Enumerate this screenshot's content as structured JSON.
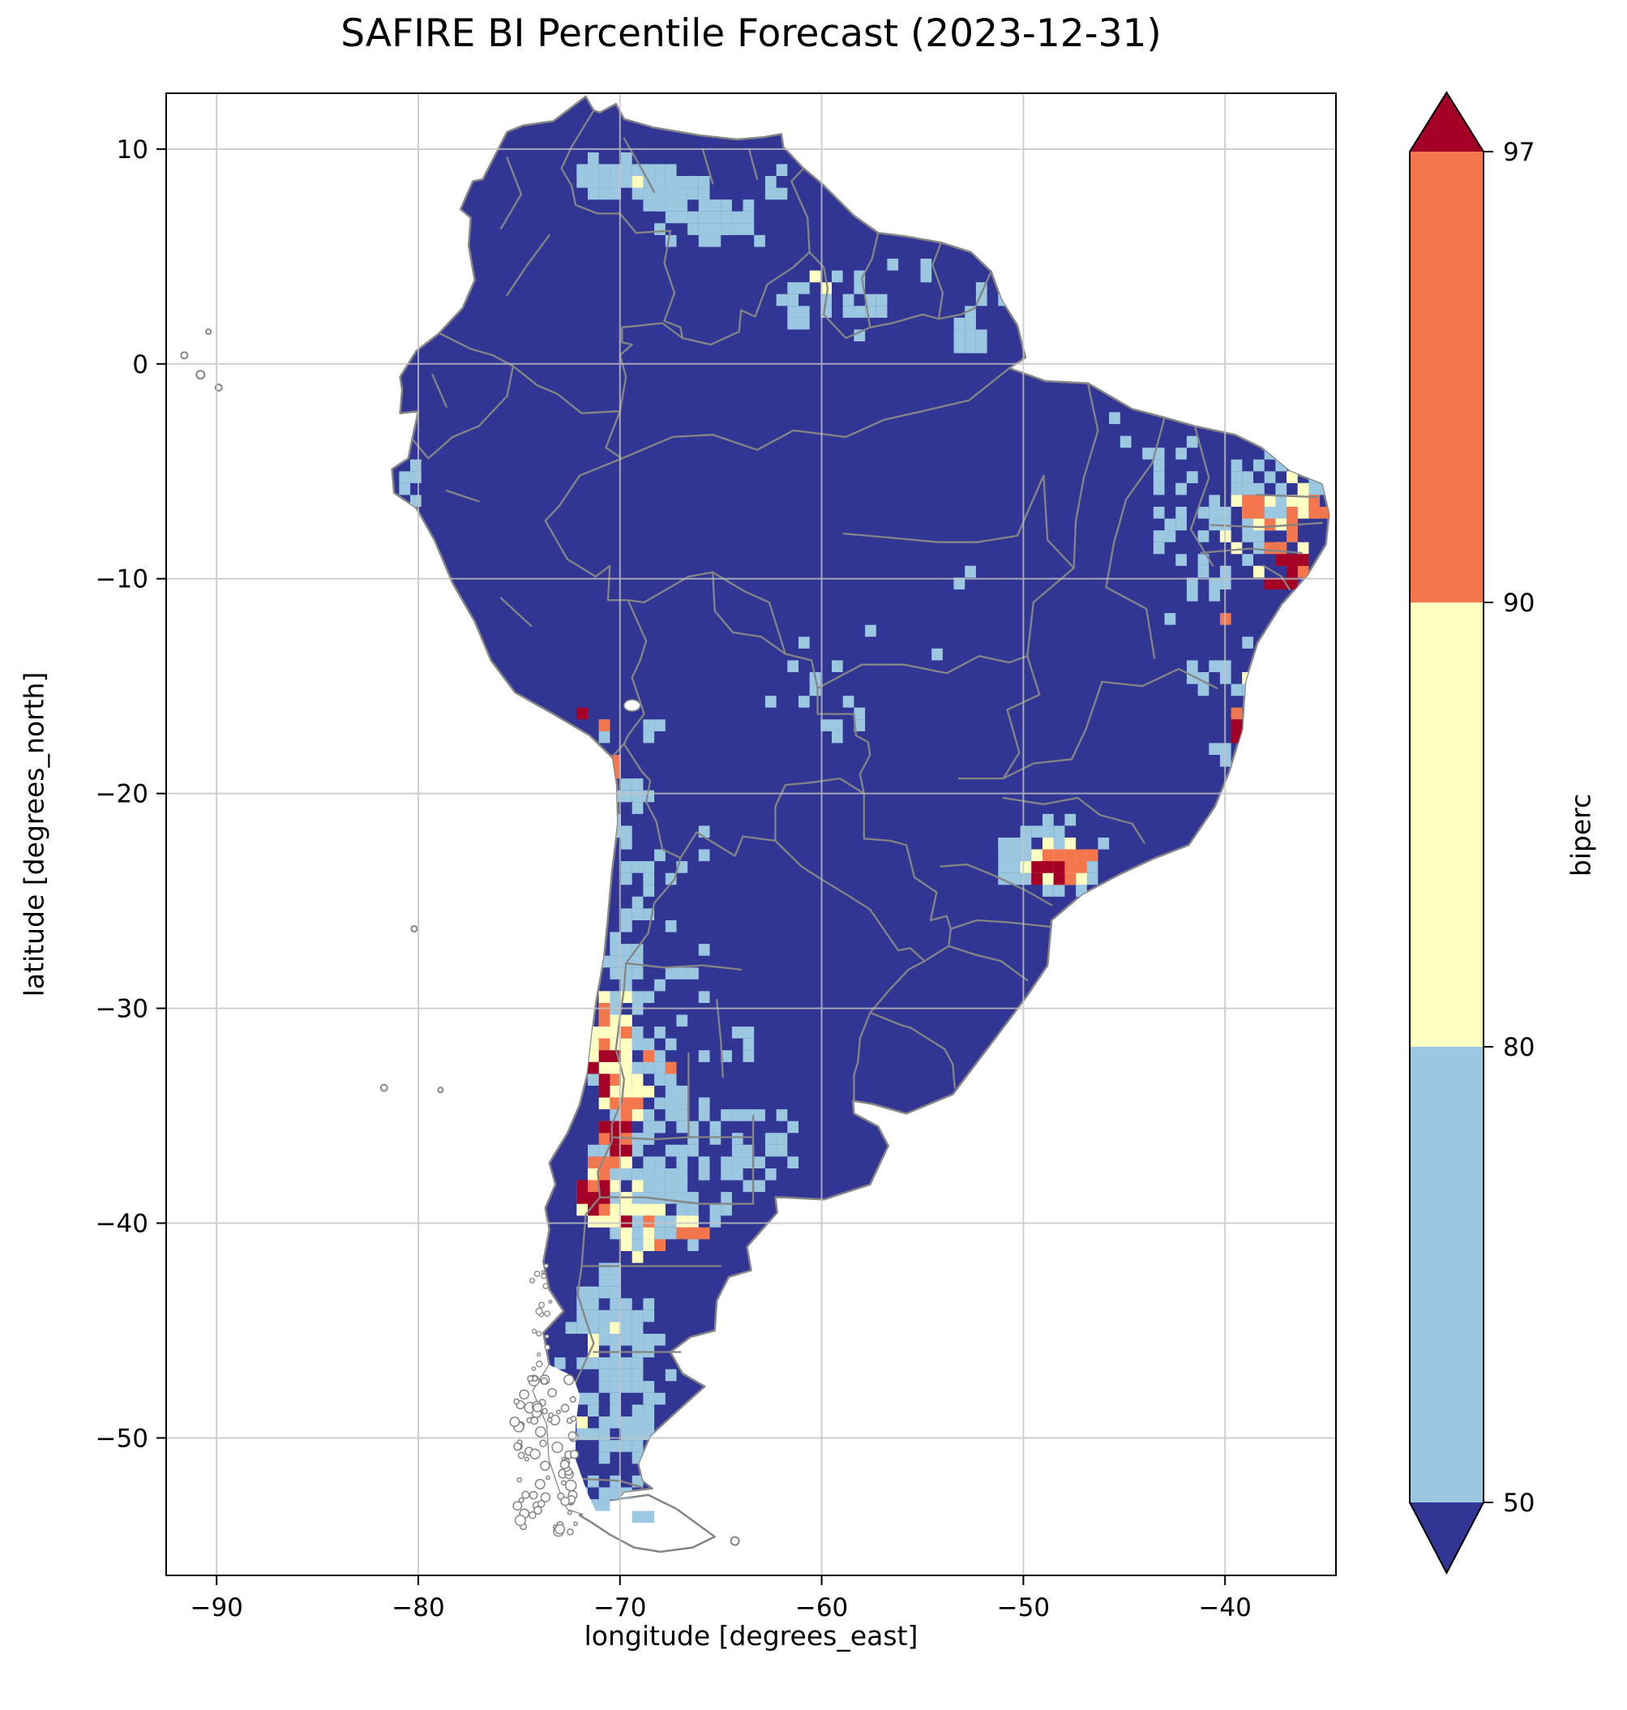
{
  "title": "SAFIRE BI Percentile Forecast (2023-12-31)",
  "axes": {
    "xlabel": "longitude [degrees_east]",
    "ylabel": "latitude [degrees_north]",
    "xticks": [
      -90,
      -80,
      -70,
      -60,
      -50,
      -40
    ],
    "xtick_labels": [
      "−90",
      "−80",
      "−70",
      "−60",
      "−50",
      "−40"
    ],
    "yticks": [
      10,
      0,
      -10,
      -20,
      -30,
      -40,
      -50
    ],
    "ytick_labels": [
      "10",
      "0",
      "−10",
      "−20",
      "−30",
      "−40",
      "−50"
    ],
    "xlim": [
      -92.5,
      -34.5
    ],
    "ylim": [
      -56.4,
      12.6
    ],
    "grid": true
  },
  "colorbar": {
    "label": "biperc",
    "tick_labels": [
      "97",
      "90",
      "80",
      "50"
    ],
    "extend": "both"
  },
  "chart_data": {
    "type": "heatmap",
    "variable": "biperc",
    "units": "percentile",
    "date": "2023-12-31",
    "region": "South America",
    "levels": [
      50,
      80,
      90,
      97
    ],
    "level_colors": {
      "under_50": "#313695",
      "50_80": "#9bc8e0",
      "80_90": "#ffffc2",
      "90_97": "#f3764d",
      "over_97": "#a50026"
    },
    "border_color": "#858585",
    "grid_color": "#c3c3c3",
    "background_value": "< 50 percentile (dark blue) over most of the continent",
    "hotspots": [
      {
        "lon": -69.6,
        "lat": 8.5,
        "rx": 2.7,
        "ry": 1.6,
        "level": "50_80",
        "density": 0.85
      },
      {
        "lon": -66.2,
        "lat": 7.0,
        "rx": 2.7,
        "ry": 1.6,
        "level": "50_80",
        "density": 0.7
      },
      {
        "lon": -63.8,
        "lat": 6.1,
        "rx": 1.4,
        "ry": 1.1,
        "level": "50_80",
        "density": 0.45
      },
      {
        "lon": -62.3,
        "lat": 8.3,
        "rx": 1.1,
        "ry": 0.9,
        "level": "50_80",
        "density": 0.4
      },
      {
        "lon": -69.2,
        "lat": 8.7,
        "rx": 0.6,
        "ry": 0.45,
        "level": "80_90",
        "density": 0.5
      },
      {
        "lon": -61.0,
        "lat": 2.9,
        "rx": 1.5,
        "ry": 1.6,
        "level": "50_80",
        "density": 0.5
      },
      {
        "lon": -58.2,
        "lat": 2.9,
        "rx": 1.7,
        "ry": 1.7,
        "level": "50_80",
        "density": 0.4
      },
      {
        "lon": -55.8,
        "lat": 4.3,
        "rx": 1.1,
        "ry": 0.9,
        "level": "50_80",
        "density": 0.35
      },
      {
        "lon": -60.1,
        "lat": 3.8,
        "rx": 0.5,
        "ry": 0.5,
        "level": "80_90",
        "density": 0.55
      },
      {
        "lon": -52.1,
        "lat": 2.0,
        "rx": 1.4,
        "ry": 2.0,
        "level": "50_80",
        "density": 0.5
      },
      {
        "lon": -60.6,
        "lat": -3.2,
        "rx": 0.8,
        "ry": 0.6,
        "level": "50_80",
        "density": 0.4
      },
      {
        "lon": -64.5,
        "lat": -5.8,
        "rx": 0.6,
        "ry": 0.5,
        "level": "50_80",
        "density": 0.3
      },
      {
        "lon": -80.2,
        "lat": -5.6,
        "rx": 0.7,
        "ry": 0.9,
        "level": "50_80",
        "density": 0.45
      },
      {
        "lon": -40.6,
        "lat": -7.6,
        "rx": 3.6,
        "ry": 3.1,
        "level": "50_80",
        "density": 0.33
      },
      {
        "lon": -37.6,
        "lat": -6.1,
        "rx": 2.6,
        "ry": 2.1,
        "level": "50_80",
        "density": 0.5
      },
      {
        "lon": -42.6,
        "lat": -4.6,
        "rx": 2.0,
        "ry": 1.6,
        "level": "50_80",
        "density": 0.3
      },
      {
        "lon": -44.9,
        "lat": -3.1,
        "rx": 1.0,
        "ry": 0.8,
        "level": "50_80",
        "density": 0.25
      },
      {
        "lon": -41.6,
        "lat": -11.4,
        "rx": 1.6,
        "ry": 1.6,
        "level": "50_80",
        "density": 0.25
      },
      {
        "lon": -41.8,
        "lat": -14.2,
        "rx": 1.3,
        "ry": 1.4,
        "level": "50_80",
        "density": 0.3
      },
      {
        "lon": -38.1,
        "lat": -7.6,
        "rx": 2.3,
        "ry": 2.3,
        "level": "80_90",
        "density": 0.3
      },
      {
        "lon": -36.3,
        "lat": -6.3,
        "rx": 1.1,
        "ry": 1.1,
        "level": "80_90",
        "density": 0.35
      },
      {
        "lon": -38.6,
        "lat": -7.2,
        "rx": 0.9,
        "ry": 0.9,
        "level": "90_97",
        "density": 0.35
      },
      {
        "lon": -36.9,
        "lat": -8.9,
        "rx": 1.5,
        "ry": 1.4,
        "level": "90_97",
        "density": 0.45
      },
      {
        "lon": -35.8,
        "lat": -7.2,
        "rx": 0.9,
        "ry": 1.4,
        "level": "90_97",
        "density": 0.3
      },
      {
        "lon": -36.5,
        "lat": -9.3,
        "rx": 0.9,
        "ry": 0.7,
        "level": "over_97",
        "density": 0.75
      },
      {
        "lon": -37.3,
        "lat": -10.3,
        "rx": 0.65,
        "ry": 0.6,
        "level": "over_97",
        "density": 0.65
      },
      {
        "lon": -35.7,
        "lat": -8.6,
        "rx": 0.5,
        "ry": 0.5,
        "level": "over_97",
        "density": 0.5
      },
      {
        "lon": -39.4,
        "lat": -14.3,
        "rx": 1.0,
        "ry": 2.2,
        "level": "50_80",
        "density": 0.5
      },
      {
        "lon": -39.3,
        "lat": -15.3,
        "rx": 0.6,
        "ry": 1.2,
        "level": "80_90",
        "density": 0.45
      },
      {
        "lon": -39.8,
        "lat": -11.6,
        "rx": 0.5,
        "ry": 0.7,
        "level": "90_97",
        "density": 0.5
      },
      {
        "lon": -39.6,
        "lat": -16.6,
        "rx": 0.5,
        "ry": 0.7,
        "level": "90_97",
        "density": 0.5
      },
      {
        "lon": -39.3,
        "lat": -17.2,
        "rx": 0.5,
        "ry": 0.9,
        "level": "over_97",
        "density": 0.7
      },
      {
        "lon": -40.1,
        "lat": -18.0,
        "rx": 0.7,
        "ry": 0.7,
        "level": "50_80",
        "density": 0.35
      },
      {
        "lon": -48.6,
        "lat": -23.0,
        "rx": 3.0,
        "ry": 1.9,
        "level": "50_80",
        "density": 0.75
      },
      {
        "lon": -50.9,
        "lat": -22.3,
        "rx": 1.1,
        "ry": 0.9,
        "level": "50_80",
        "density": 0.4
      },
      {
        "lon": -48.4,
        "lat": -23.2,
        "rx": 2.0,
        "ry": 1.2,
        "level": "80_90",
        "density": 0.8
      },
      {
        "lon": -47.9,
        "lat": -23.3,
        "rx": 1.5,
        "ry": 0.85,
        "level": "90_97",
        "density": 0.8
      },
      {
        "lon": -46.2,
        "lat": -22.8,
        "rx": 0.8,
        "ry": 0.5,
        "level": "90_97",
        "density": 0.55
      },
      {
        "lon": -48.7,
        "lat": -23.6,
        "rx": 1.05,
        "ry": 0.55,
        "level": "over_97",
        "density": 0.9
      },
      {
        "lon": -55.4,
        "lat": -12.6,
        "rx": 3.2,
        "ry": 2.2,
        "level": "50_80",
        "density": 0.1
      },
      {
        "lon": -60.2,
        "lat": -13.6,
        "rx": 1.6,
        "ry": 1.6,
        "level": "50_80",
        "density": 0.15
      },
      {
        "lon": -58.6,
        "lat": -16.6,
        "rx": 1.7,
        "ry": 1.1,
        "level": "50_80",
        "density": 0.3
      },
      {
        "lon": -61.3,
        "lat": -15.6,
        "rx": 1.4,
        "ry": 1.1,
        "level": "50_80",
        "density": 0.2
      },
      {
        "lon": -52.8,
        "lat": -10.8,
        "rx": 1.5,
        "ry": 1.5,
        "level": "50_80",
        "density": 0.1
      },
      {
        "lon": -71.4,
        "lat": -16.8,
        "rx": 0.7,
        "ry": 0.55,
        "level": "90_97",
        "density": 0.6
      },
      {
        "lon": -71.7,
        "lat": -16.5,
        "rx": 0.35,
        "ry": 0.3,
        "level": "over_97",
        "density": 0.7
      },
      {
        "lon": -70.4,
        "lat": -17.3,
        "rx": 0.9,
        "ry": 0.6,
        "level": "50_80",
        "density": 0.5
      },
      {
        "lon": -72.4,
        "lat": -15.4,
        "rx": 0.35,
        "ry": 0.3,
        "level": "90_97",
        "density": 0.55
      },
      {
        "lon": -70.2,
        "lat": -18.6,
        "rx": 0.45,
        "ry": 0.6,
        "level": "90_97",
        "density": 0.55
      },
      {
        "lon": -68.3,
        "lat": -16.4,
        "rx": 0.6,
        "ry": 0.45,
        "level": "80_90",
        "density": 0.5
      },
      {
        "lon": -68.7,
        "lat": -16.9,
        "rx": 0.8,
        "ry": 0.5,
        "level": "50_80",
        "density": 0.4
      },
      {
        "lon": -69.5,
        "lat": -20.6,
        "rx": 1.0,
        "ry": 2.4,
        "level": "50_80",
        "density": 0.55
      },
      {
        "lon": -69.0,
        "lat": -24.8,
        "rx": 1.0,
        "ry": 2.4,
        "level": "50_80",
        "density": 0.5
      },
      {
        "lon": -69.9,
        "lat": -28.3,
        "rx": 1.3,
        "ry": 1.9,
        "level": "50_80",
        "density": 0.6
      },
      {
        "lon": -67.6,
        "lat": -24.3,
        "rx": 0.9,
        "ry": 2.0,
        "level": "50_80",
        "density": 0.2
      },
      {
        "lon": -70.3,
        "lat": -31.6,
        "rx": 1.9,
        "ry": 3.1,
        "level": "50_80",
        "density": 0.7
      },
      {
        "lon": -68.8,
        "lat": -33.6,
        "rx": 1.9,
        "ry": 3.1,
        "level": "50_80",
        "density": 0.5
      },
      {
        "lon": -67.4,
        "lat": -29.6,
        "rx": 1.6,
        "ry": 1.6,
        "level": "50_80",
        "density": 0.3
      },
      {
        "lon": -64.6,
        "lat": -31.8,
        "rx": 1.4,
        "ry": 1.2,
        "level": "50_80",
        "density": 0.45
      },
      {
        "lon": -65.6,
        "lat": -28.4,
        "rx": 1.1,
        "ry": 1.5,
        "level": "50_80",
        "density": 0.2
      },
      {
        "lon": -70.4,
        "lat": -31.6,
        "rx": 1.25,
        "ry": 2.7,
        "level": "80_90",
        "density": 0.55
      },
      {
        "lon": -69.6,
        "lat": -34.2,
        "rx": 1.3,
        "ry": 2.7,
        "level": "80_90",
        "density": 0.45
      },
      {
        "lon": -70.5,
        "lat": -31.0,
        "rx": 0.95,
        "ry": 1.7,
        "level": "90_97",
        "density": 0.5
      },
      {
        "lon": -69.9,
        "lat": -35.1,
        "rx": 1.0,
        "ry": 2.2,
        "level": "90_97",
        "density": 0.5
      },
      {
        "lon": -70.7,
        "lat": -32.9,
        "rx": 0.75,
        "ry": 1.15,
        "level": "over_97",
        "density": 0.65
      },
      {
        "lon": -70.1,
        "lat": -35.9,
        "rx": 0.8,
        "ry": 1.4,
        "level": "over_97",
        "density": 0.6
      },
      {
        "lon": -68.2,
        "lat": -32.6,
        "rx": 0.8,
        "ry": 0.8,
        "level": "90_97",
        "density": 0.3
      },
      {
        "lon": -69.8,
        "lat": -38.2,
        "rx": 2.3,
        "ry": 2.6,
        "level": "50_80",
        "density": 0.55
      },
      {
        "lon": -70.4,
        "lat": -38.6,
        "rx": 1.7,
        "ry": 2.1,
        "level": "80_90",
        "density": 0.5
      },
      {
        "lon": -70.9,
        "lat": -38.1,
        "rx": 1.2,
        "ry": 1.5,
        "level": "90_97",
        "density": 0.5
      },
      {
        "lon": -71.4,
        "lat": -38.6,
        "rx": 0.7,
        "ry": 1.0,
        "level": "over_97",
        "density": 0.7
      },
      {
        "lon": -69.9,
        "lat": -40.0,
        "rx": 0.5,
        "ry": 0.45,
        "level": "over_97",
        "density": 0.6
      },
      {
        "lon": -68.9,
        "lat": -40.3,
        "rx": 2.7,
        "ry": 1.3,
        "level": "80_90",
        "density": 0.55
      },
      {
        "lon": -67.9,
        "lat": -40.5,
        "rx": 1.6,
        "ry": 0.9,
        "level": "90_97",
        "density": 0.35
      },
      {
        "lon": -66.3,
        "lat": -40.4,
        "rx": 0.9,
        "ry": 0.55,
        "level": "90_97",
        "density": 0.5
      },
      {
        "lon": -67.6,
        "lat": -39.0,
        "rx": 3.3,
        "ry": 2.3,
        "level": "50_80",
        "density": 0.6
      },
      {
        "lon": -63.8,
        "lat": -36.6,
        "rx": 3.1,
        "ry": 2.1,
        "level": "50_80",
        "density": 0.5
      },
      {
        "lon": -66.8,
        "lat": -35.2,
        "rx": 2.2,
        "ry": 1.7,
        "level": "50_80",
        "density": 0.45
      },
      {
        "lon": -70.1,
        "lat": -46.2,
        "rx": 2.9,
        "ry": 4.6,
        "level": "50_80",
        "density": 0.6
      },
      {
        "lon": -69.6,
        "lat": -50.6,
        "rx": 2.1,
        "ry": 1.7,
        "level": "50_80",
        "density": 0.5
      },
      {
        "lon": -70.6,
        "lat": -52.6,
        "rx": 1.6,
        "ry": 1.0,
        "level": "50_80",
        "density": 0.5
      },
      {
        "lon": -69.1,
        "lat": -53.6,
        "rx": 0.9,
        "ry": 0.6,
        "level": "50_80",
        "density": 0.45
      },
      {
        "lon": -71.4,
        "lat": -45.4,
        "rx": 0.5,
        "ry": 0.8,
        "level": "80_90",
        "density": 0.4
      },
      {
        "lon": -69.9,
        "lat": -44.8,
        "rx": 0.5,
        "ry": 0.5,
        "level": "80_90",
        "density": 0.35
      },
      {
        "lon": -70.1,
        "lat": -53.4,
        "rx": 0.4,
        "ry": 0.35,
        "level": "80_90",
        "density": 0.5
      },
      {
        "lon": -71.9,
        "lat": -48.9,
        "rx": 0.4,
        "ry": 0.6,
        "level": "80_90",
        "density": 0.35
      },
      {
        "lon": -65.6,
        "lat": -22.3,
        "rx": 0.8,
        "ry": 0.7,
        "level": "50_80",
        "density": 0.25
      }
    ]
  }
}
